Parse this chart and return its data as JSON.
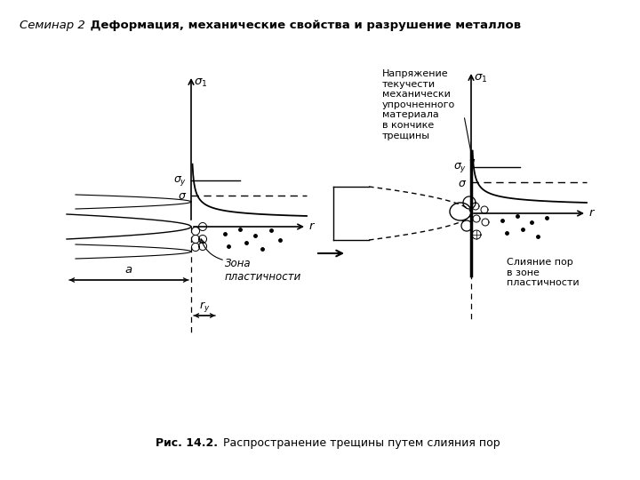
{
  "title_italic": "Семинар 2",
  "title_bold": " Деформация, механические свойства и разрушение металлов",
  "caption_bold": "Рис. 14.2.",
  "caption_normal": " Распространение трещины путем слияния пор",
  "background": "#ffffff",
  "text_color": "#000000",
  "annotation_left": {
    "zone_label": "Зона\nпластичности"
  },
  "annotation_right": {
    "stress_label": "Напряжение\nтекучести\nмеханически\nупрочненного\nматериала\nв кончике\nтрещины",
    "merge_label": "Слияние пор\nв зоне\nпластичности"
  }
}
